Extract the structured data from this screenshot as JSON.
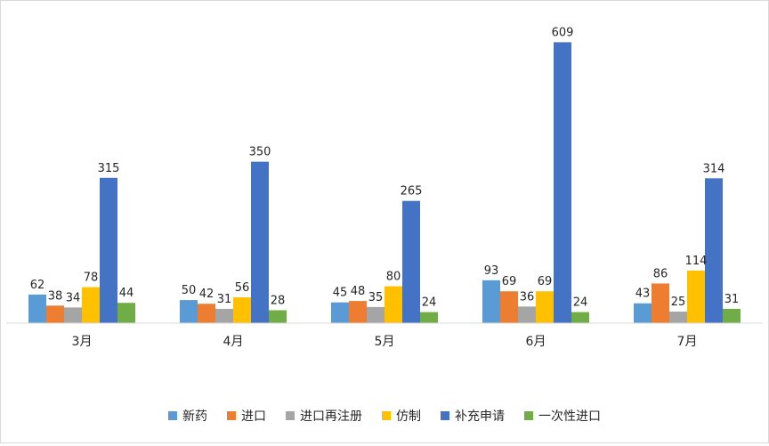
{
  "chart_data": {
    "type": "bar",
    "categories": [
      "3月",
      "4月",
      "5月",
      "6月",
      "7月"
    ],
    "series": [
      {
        "name": "新药",
        "color": "#5B9BD5",
        "values": [
          62,
          50,
          45,
          93,
          43
        ]
      },
      {
        "name": "进口",
        "color": "#ED7D31",
        "values": [
          38,
          42,
          48,
          69,
          86
        ]
      },
      {
        "name": "进口再注册",
        "color": "#A5A5A5",
        "values": [
          34,
          31,
          35,
          36,
          25
        ]
      },
      {
        "name": "仿制",
        "color": "#FFC000",
        "values": [
          78,
          56,
          80,
          69,
          114
        ]
      },
      {
        "name": "补充申请",
        "color": "#4472C4",
        "values": [
          315,
          350,
          265,
          609,
          314
        ]
      },
      {
        "name": "一次性进口",
        "color": "#70AD47",
        "values": [
          44,
          28,
          24,
          24,
          31
        ]
      }
    ],
    "title": "",
    "xlabel": "",
    "ylabel": "",
    "ylim": [
      0,
      660
    ],
    "grid": false,
    "data_labels": true,
    "legend_position": "bottom"
  }
}
